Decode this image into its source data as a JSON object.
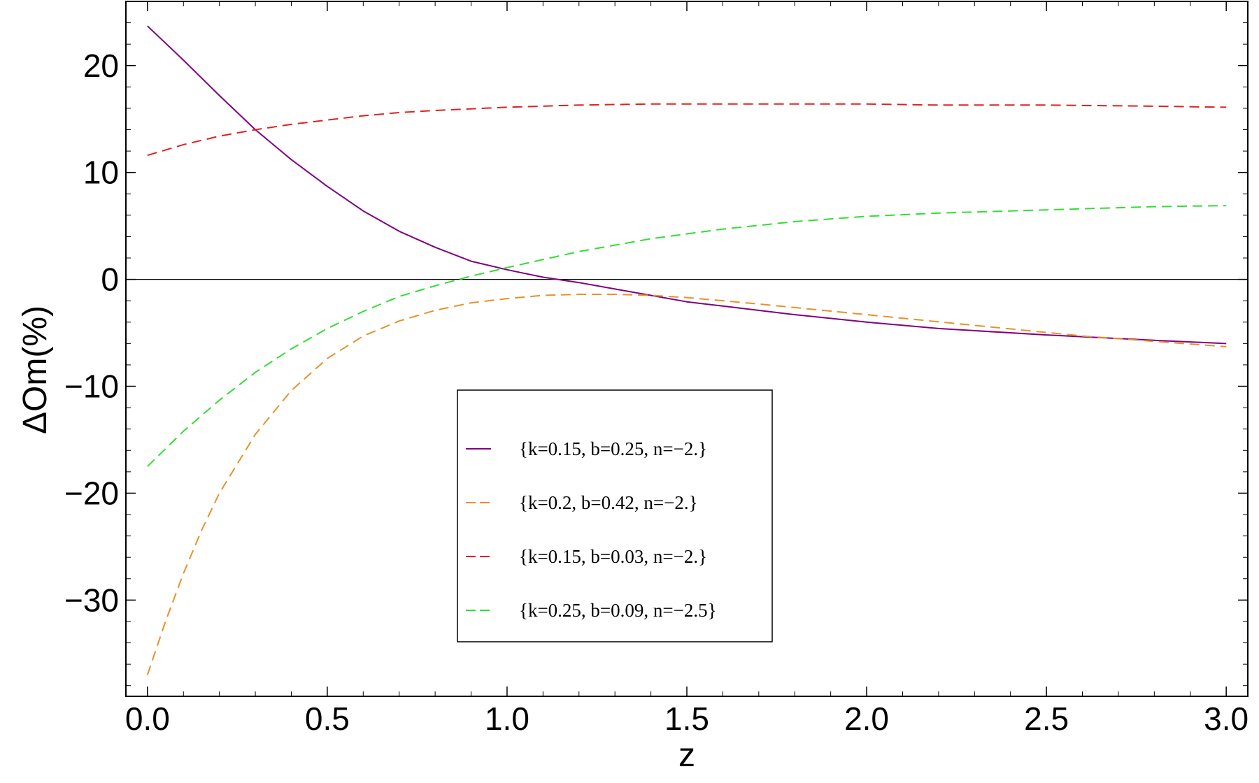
{
  "chart_data": {
    "type": "line",
    "xlabel": "z",
    "ylabel": "ΔOm(%)",
    "xlim": [
      -0.06,
      3.06
    ],
    "ylim": [
      -39,
      26
    ],
    "x_ticks": [
      0.0,
      0.5,
      1.0,
      1.5,
      2.0,
      2.5,
      3.0
    ],
    "x_tick_labels": [
      "0.0",
      "0.5",
      "1.0",
      "1.5",
      "2.0",
      "2.5",
      "3.0"
    ],
    "y_ticks": [
      20,
      10,
      0,
      -10,
      -20,
      -30
    ],
    "y_tick_labels": [
      "20",
      "10",
      "0",
      "−10",
      "−20",
      "−30"
    ],
    "zero_line": true,
    "grid": false,
    "legend_position": "lower-center",
    "series": [
      {
        "name": "{k=0.15, b=0.25, n=−2.}",
        "color": "#800080",
        "dashed": false,
        "x": [
          0.0,
          0.1,
          0.2,
          0.3,
          0.4,
          0.5,
          0.6,
          0.7,
          0.8,
          0.9,
          1.0,
          1.1,
          1.2,
          1.3,
          1.4,
          1.5,
          1.6,
          1.8,
          2.0,
          2.2,
          2.5,
          2.8,
          3.0
        ],
        "y": [
          23.7,
          20.5,
          17.2,
          14.0,
          11.2,
          8.7,
          6.4,
          4.5,
          3.0,
          1.7,
          0.9,
          0.2,
          -0.3,
          -0.9,
          -1.5,
          -2.1,
          -2.5,
          -3.3,
          -4.0,
          -4.6,
          -5.2,
          -5.7,
          -6.0
        ]
      },
      {
        "name": "{k=0.2, b=0.42, n=−2.}",
        "color": "#e8912a",
        "dashed": true,
        "x": [
          0.0,
          0.05,
          0.1,
          0.15,
          0.2,
          0.3,
          0.4,
          0.5,
          0.6,
          0.7,
          0.8,
          0.9,
          1.0,
          1.1,
          1.2,
          1.3,
          1.4,
          1.5,
          1.7,
          2.0,
          2.3,
          2.6,
          2.8,
          3.0
        ],
        "y": [
          -37.0,
          -32.0,
          -27.5,
          -23.5,
          -20.0,
          -14.5,
          -10.4,
          -7.4,
          -5.3,
          -3.9,
          -2.9,
          -2.2,
          -1.8,
          -1.5,
          -1.4,
          -1.4,
          -1.5,
          -1.7,
          -2.3,
          -3.3,
          -4.3,
          -5.3,
          -5.8,
          -6.3
        ]
      },
      {
        "name": "{k=0.15, b=0.03, n=−2.}",
        "color": "#e02020",
        "dashed": true,
        "x": [
          0.0,
          0.1,
          0.2,
          0.3,
          0.4,
          0.5,
          0.6,
          0.7,
          0.8,
          1.0,
          1.2,
          1.4,
          1.6,
          1.8,
          2.0,
          2.2,
          2.5,
          2.8,
          3.0
        ],
        "y": [
          11.6,
          12.6,
          13.4,
          14.0,
          14.5,
          14.9,
          15.3,
          15.6,
          15.8,
          16.1,
          16.3,
          16.4,
          16.4,
          16.4,
          16.4,
          16.3,
          16.3,
          16.2,
          16.1
        ]
      },
      {
        "name": "{k=0.25, b=0.09, n=−2.5}",
        "color": "#33dd33",
        "dashed": true,
        "x": [
          0.0,
          0.1,
          0.2,
          0.3,
          0.4,
          0.5,
          0.6,
          0.7,
          0.8,
          0.9,
          1.0,
          1.2,
          1.4,
          1.6,
          1.8,
          2.0,
          2.2,
          2.5,
          2.8,
          3.0
        ],
        "y": [
          -17.5,
          -14.2,
          -11.3,
          -8.7,
          -6.5,
          -4.6,
          -3.0,
          -1.6,
          -0.6,
          0.3,
          1.1,
          2.6,
          3.8,
          4.7,
          5.4,
          5.9,
          6.2,
          6.5,
          6.8,
          6.9
        ]
      }
    ]
  }
}
